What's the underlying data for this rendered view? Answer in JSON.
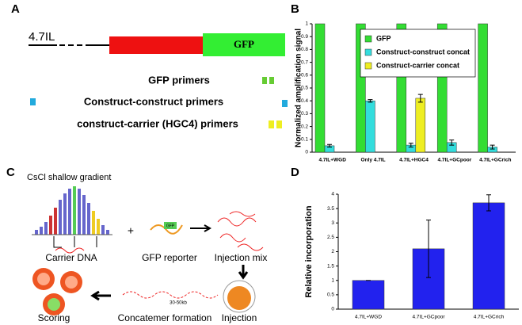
{
  "panel_a": {
    "letter": "A",
    "construct": "4.7IL",
    "gfp": "GFP",
    "primers": [
      "GFP primers",
      "Construct-construct primers",
      "construct-carrier (HGC4) primers"
    ]
  },
  "panel_c": {
    "letter": "C",
    "gradient": "CsCl shallow gradient",
    "carrier": "Carrier DNA",
    "plus": "+",
    "reporter": "GFP reporter",
    "mix": "Injection mix",
    "injection": "Injection",
    "size": "30-50kb",
    "concatemer": "Concatemer formation",
    "scoring": "Scoring"
  },
  "chart_data": [
    {
      "type": "bar",
      "letter": "B",
      "y_label": "Normalized amplification signal",
      "categories": [
        "4.7IL+WGD",
        "Only 4.7IL",
        "4.7IL+HGC4",
        "4.7IL+GCpoor",
        "4.7IL+GCrich"
      ],
      "series": [
        {
          "name": "GFP",
          "color": "#33dd33",
          "values": [
            1,
            1,
            1,
            1,
            1
          ],
          "errors": [
            null,
            null,
            null,
            null,
            null
          ]
        },
        {
          "name": "Construct-construct concat",
          "color": "#33dddd",
          "values": [
            0.05,
            0.4,
            0.055,
            0.075,
            0.04
          ],
          "errors": [
            0.01,
            0.01,
            0.015,
            0.02,
            0.015
          ]
        },
        {
          "name": "Construct-carrier concat",
          "color": "#eeee22",
          "values": [
            null,
            null,
            0.42,
            null,
            null
          ],
          "errors": [
            null,
            null,
            0.03,
            null,
            null
          ]
        }
      ],
      "ylim": [
        0,
        1
      ],
      "yticks": [
        0,
        0.1,
        0.2,
        0.3,
        0.4,
        0.5,
        0.6,
        0.7,
        0.8,
        0.9,
        1
      ],
      "grid": false,
      "legend": "top-right"
    },
    {
      "type": "bar",
      "letter": "D",
      "y_label": "Relative incorporation",
      "categories": [
        "4.7IL+WGD",
        "4.7IL+GCpoor",
        "4.7IL+GCrich"
      ],
      "series": [
        {
          "name": null,
          "color": "#2222ee",
          "values": [
            1,
            2.1,
            3.7
          ],
          "errors": [
            0,
            1.0,
            0.28
          ]
        }
      ],
      "ylim": [
        0,
        4
      ],
      "yticks": [
        0,
        0.5,
        1,
        1.5,
        2,
        2.5,
        3,
        3.5,
        4
      ],
      "grid": false
    }
  ]
}
